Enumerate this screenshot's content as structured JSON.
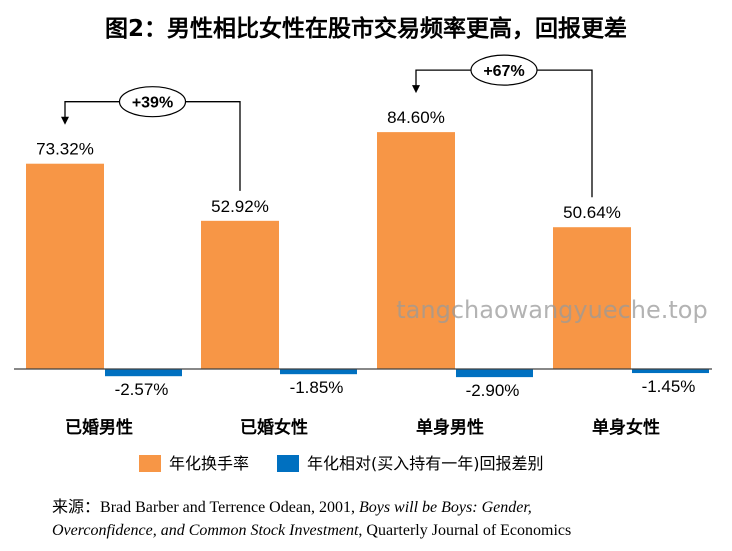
{
  "colors": {
    "series1": "#F79646",
    "series2": "#0070C0",
    "axis": "#404040",
    "arrow": "#000000"
  },
  "chart_data": {
    "type": "bar",
    "title": "图2：男性相比女性在股市交易频率更高，回报更差",
    "categories": [
      "已婚男性",
      "已婚女性",
      "单身男性",
      "单身女性"
    ],
    "series": [
      {
        "name": "年化换手率",
        "values": [
          73.32,
          52.92,
          84.6,
          50.64
        ],
        "labels": [
          "73.32%",
          "52.92%",
          "84.60%",
          "50.64%"
        ]
      },
      {
        "name": "年化相对(买入持有一年)回报差别",
        "values": [
          -2.57,
          -1.85,
          -2.9,
          -1.45
        ],
        "labels": [
          "-2.57%",
          "-1.85%",
          "-2.90%",
          "-1.45%"
        ]
      }
    ],
    "annotations": [
      {
        "text": "+39%",
        "from_category": 1,
        "to_category": 0
      },
      {
        "text": "+67%",
        "from_category": 3,
        "to_category": 2
      }
    ],
    "xlabel": "",
    "ylabel": "",
    "ylim": [
      -3,
      90
    ],
    "legend_position": "bottom"
  },
  "watermark": "tangchaowangyueche.top",
  "source": {
    "prefix": "来源：",
    "part1": "Brad Barber and Terrence Odean, 2001, ",
    "italic": "Boys will be Boys: Gender, Overconfidence, and Common Stock Investment",
    "part2": ", Quarterly Journal of Economics"
  }
}
